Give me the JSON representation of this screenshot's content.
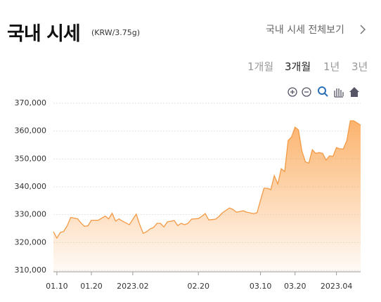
{
  "header": {
    "title": "국내 시세",
    "unit": "(KRW/3.75g)",
    "link": "국내 시세 전체보기"
  },
  "tabs": [
    "1개월",
    "3개월",
    "1년",
    "3년"
  ],
  "chart_data": {
    "type": "area",
    "color": "#f39a45",
    "grid": true,
    "x": [
      "2023-01-09",
      "2023-01-10",
      "2023-01-11",
      "2023-01-12",
      "2023-01-13",
      "2023-01-14",
      "2023-01-16",
      "2023-01-17",
      "2023-01-18",
      "2023-01-19",
      "2023-01-20",
      "2023-01-22",
      "2023-01-24",
      "2023-01-25",
      "2023-01-26",
      "2023-01-27",
      "2023-01-28",
      "2023-01-29",
      "2023-01-31",
      "2023-02-02",
      "2023-02-03",
      "2023-02-04",
      "2023-02-05",
      "2023-02-06",
      "2023-02-07",
      "2023-02-08",
      "2023-02-09",
      "2023-02-10",
      "2023-02-11",
      "2023-02-13",
      "2023-02-14",
      "2023-02-15",
      "2023-02-16",
      "2023-02-17",
      "2023-02-18",
      "2023-02-20",
      "2023-02-21",
      "2023-02-22",
      "2023-02-23",
      "2023-02-25",
      "2023-02-26",
      "2023-02-27",
      "2023-03-01",
      "2023-03-02",
      "2023-03-03",
      "2023-03-05",
      "2023-03-06",
      "2023-03-08",
      "2023-03-09",
      "2023-03-10",
      "2023-03-11",
      "2023-03-12",
      "2023-03-13",
      "2023-03-14",
      "2023-03-15",
      "2023-03-16",
      "2023-03-17",
      "2023-03-18",
      "2023-03-19",
      "2023-03-20",
      "2023-03-21",
      "2023-03-22",
      "2023-03-23",
      "2023-03-24",
      "2023-03-25",
      "2023-03-26",
      "2023-03-27",
      "2023-03-28",
      "2023-03-29",
      "2023-03-30",
      "2023-03-31",
      "2023-04-01",
      "2023-04-02",
      "2023-04-03",
      "2023-04-04",
      "2023-04-05",
      "2023-04-06",
      "2023-04-07",
      "2023-04-08"
    ],
    "values": [
      323900,
      321600,
      323600,
      324000,
      326000,
      329000,
      328500,
      327000,
      325800,
      326000,
      328000,
      328000,
      329500,
      328500,
      330500,
      327700,
      328500,
      327700,
      326400,
      330200,
      326400,
      323300,
      323900,
      324900,
      325400,
      326900,
      326900,
      325600,
      327400,
      327900,
      326100,
      326900,
      326400,
      326900,
      328400,
      328600,
      329400,
      330400,
      328100,
      328400,
      329400,
      330700,
      332400,
      331900,
      330900,
      331400,
      330900,
      330400,
      330700,
      335200,
      339500,
      339500,
      339000,
      344000,
      341000,
      346500,
      345500,
      356600,
      357900,
      361400,
      360400,
      352800,
      349000,
      348500,
      353300,
      352000,
      352300,
      352000,
      349600,
      351100,
      350900,
      354100,
      353600,
      353600,
      356600,
      363700,
      363700,
      362900,
      362100
    ],
    "xlim": [
      "2023-01-09",
      "2023-04-08"
    ],
    "xticks": [
      {
        "value": "2023-01-10",
        "label": "01.10"
      },
      {
        "value": "2023-01-20",
        "label": "01.20"
      },
      {
        "value": "2023-02-01",
        "label": "2023.02"
      },
      {
        "value": "2023-02-20",
        "label": "02.20"
      },
      {
        "value": "2023-03-10",
        "label": "03.10"
      },
      {
        "value": "2023-03-20",
        "label": "03.20"
      },
      {
        "value": "2023-04-01",
        "label": "2023.04"
      }
    ],
    "ylim": [
      309500,
      371000
    ],
    "yticks": [
      {
        "value": 310000,
        "label": "310,000"
      },
      {
        "value": 320000,
        "label": "320,000"
      },
      {
        "value": 330000,
        "label": "330,000"
      },
      {
        "value": 340000,
        "label": "340,000"
      },
      {
        "value": 350000,
        "label": "350,000"
      },
      {
        "value": 360000,
        "label": "360,000"
      },
      {
        "value": 370000,
        "label": "370,000"
      }
    ]
  }
}
